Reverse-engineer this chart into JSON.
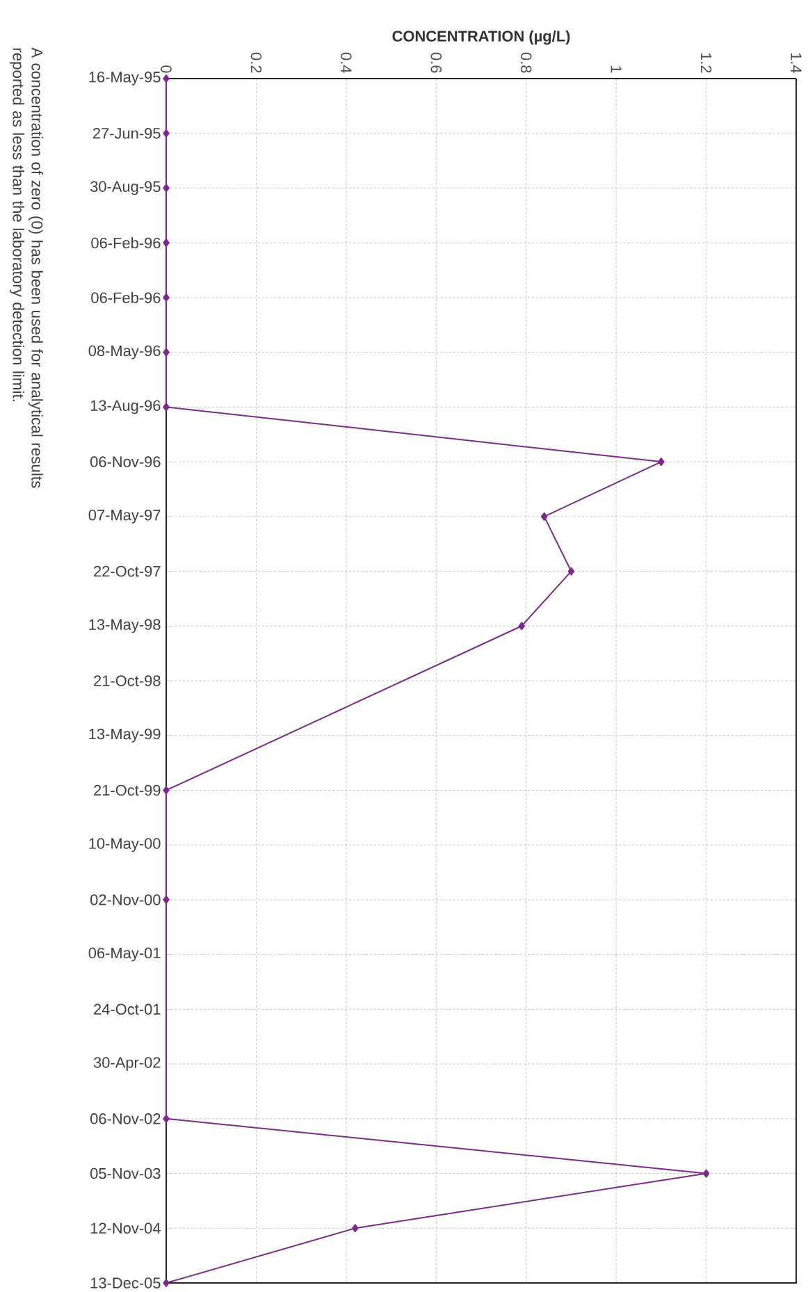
{
  "chart_data": {
    "type": "line",
    "orientation": "horizontal",
    "xlabel": "CONCENTRATION (µg/L)",
    "categories": [
      "16-May-95",
      "27-Jun-95",
      "30-Aug-95",
      "06-Feb-96",
      "06-Feb-96",
      "08-May-96",
      "13-Aug-96",
      "06-Nov-96",
      "07-May-97",
      "22-Oct-97",
      "13-May-98",
      "21-Oct-98",
      "13-May-99",
      "21-Oct-99",
      "10-May-00",
      "02-Nov-00",
      "06-May-01",
      "24-Oct-01",
      "30-Apr-02",
      "06-Nov-02",
      "05-Nov-03",
      "12-Nov-04",
      "13-Dec-05"
    ],
    "values": [
      0,
      0,
      0,
      0,
      0,
      0,
      0,
      1.1,
      0.84,
      0.9,
      0.79,
      null,
      null,
      0,
      null,
      0,
      null,
      null,
      null,
      0,
      1.2,
      0.42,
      0
    ],
    "color": "#7b2a8a",
    "xlim": [
      0,
      1.4
    ],
    "xticks": [
      0,
      0.2,
      0.4,
      0.6,
      0.8,
      1,
      1.2,
      1.4
    ],
    "grid": true,
    "marker": "diamond",
    "line_style": "solid",
    "annotations": [
      "A concentration of zero (0) has been used for analytical results reported as less than the laboratory detection limit."
    ]
  }
}
